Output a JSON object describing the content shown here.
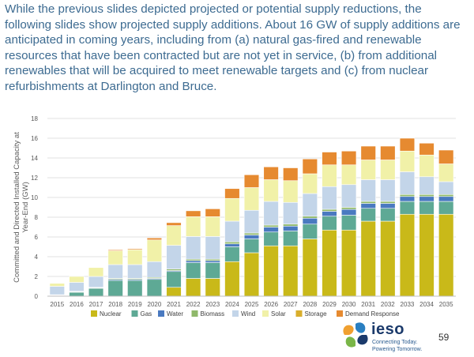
{
  "intro_text": "While the previous slides depicted projected or potential supply reductions, the following slides show projected supply additions. About 16 GW of supply additions are anticipated in coming years, including from (a) natural gas-fired and renewable resources that have been contracted but are not yet in service,  (b) from additional renewables that will be acquired to meet renewable targets and (c) from nuclear refurbishments at Darlington and Bruce.",
  "logo": {
    "name": "ieso",
    "tagline_1": "Connecting Today.",
    "tagline_2": "Powering Tomorrow."
  },
  "page_number": "59",
  "colors": {
    "Nuclear": "#c9b919",
    "Gas": "#5ea995",
    "Water": "#4a7ac0",
    "Biomass": "#8fb86a",
    "Wind": "#c3d5e9",
    "Solar": "#f1f1a8",
    "Storage": "#d9ae2c",
    "Demand Response": "#e68a30"
  },
  "chart_data": {
    "type": "bar",
    "stacked": true,
    "title": "",
    "xlabel": "",
    "ylabel": "Committed and Directed Installed Capacity at Year-End (GW)",
    "ylim": [
      0,
      18
    ],
    "yticks": [
      0,
      2,
      4,
      6,
      8,
      10,
      12,
      14,
      16,
      18
    ],
    "grid": true,
    "legend": "bottom",
    "categories": [
      "2015",
      "2016",
      "2017",
      "2018",
      "2019",
      "2020",
      "2021",
      "2022",
      "2023",
      "2024",
      "2025",
      "2026",
      "2027",
      "2028",
      "2029",
      "2030",
      "2031",
      "2032",
      "2033",
      "2034",
      "2035"
    ],
    "series": [
      {
        "name": "Nuclear",
        "values": [
          0,
          0,
          0,
          0,
          0,
          0,
          0.9,
          1.8,
          1.8,
          3.5,
          4.4,
          5.1,
          5.1,
          5.8,
          6.7,
          6.7,
          7.6,
          7.6,
          8.3,
          8.3,
          8.3
        ]
      },
      {
        "name": "Gas",
        "values": [
          0.05,
          0.4,
          0.8,
          1.6,
          1.6,
          1.7,
          1.6,
          1.6,
          1.6,
          1.5,
          1.4,
          1.4,
          1.5,
          1.5,
          1.4,
          1.5,
          1.3,
          1.3,
          1.3,
          1.3,
          1.3
        ]
      },
      {
        "name": "Water",
        "values": [
          0.05,
          0.05,
          0.05,
          0.1,
          0.1,
          0.1,
          0.1,
          0.2,
          0.2,
          0.3,
          0.4,
          0.5,
          0.5,
          0.6,
          0.5,
          0.6,
          0.5,
          0.5,
          0.5,
          0.5,
          0.5
        ]
      },
      {
        "name": "Biomass",
        "values": [
          0.05,
          0.05,
          0.05,
          0.1,
          0.1,
          0.1,
          0.15,
          0.15,
          0.15,
          0.2,
          0.2,
          0.2,
          0.2,
          0.2,
          0.2,
          0.2,
          0.2,
          0.2,
          0.2,
          0.2,
          0.2
        ]
      },
      {
        "name": "Wind",
        "values": [
          0.85,
          0.9,
          1.1,
          1.4,
          1.4,
          1.6,
          2.4,
          2.3,
          2.3,
          2.1,
          2.3,
          2.4,
          2.2,
          2.3,
          2.3,
          2.3,
          2.2,
          2.2,
          2.3,
          1.8,
          1.3
        ]
      },
      {
        "name": "Solar",
        "values": [
          0.3,
          0.6,
          0.9,
          1.4,
          1.5,
          2.2,
          2.0,
          2.0,
          2.0,
          2.3,
          2.3,
          2.2,
          2.2,
          2.0,
          2.2,
          2.0,
          2.0,
          2.0,
          2.1,
          2.2,
          1.8
        ]
      },
      {
        "name": "Storage",
        "values": [
          0,
          0,
          0,
          0,
          0,
          0,
          0,
          0,
          0,
          0,
          0,
          0,
          0,
          0,
          0,
          0,
          0,
          0,
          0,
          0,
          0
        ]
      },
      {
        "name": "Demand Response",
        "values": [
          0,
          0,
          0,
          0.1,
          0.1,
          0.2,
          0.3,
          0.6,
          0.8,
          1.0,
          1.3,
          1.3,
          1.3,
          1.5,
          1.3,
          1.4,
          1.4,
          1.4,
          1.3,
          1.2,
          1.4
        ]
      }
    ]
  }
}
